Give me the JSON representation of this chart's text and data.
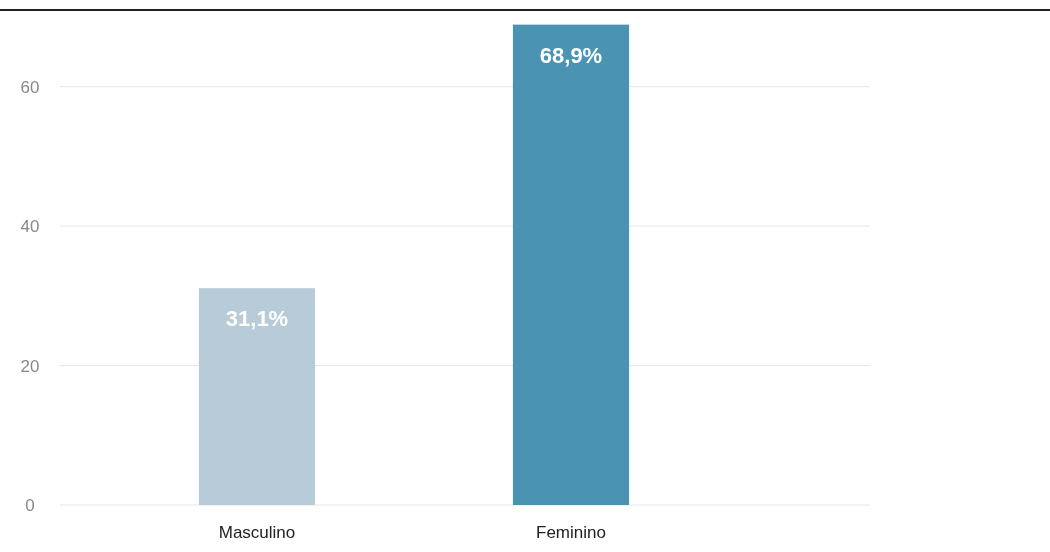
{
  "chart_data": {
    "type": "bar",
    "categories": [
      "Masculino",
      "Feminino"
    ],
    "values": [
      31.1,
      68.9
    ],
    "colors": [
      "#b8cbd8",
      "#4a93b3"
    ],
    "value_labels": [
      "31,1%",
      "68,9%"
    ],
    "ylim": [
      0,
      71
    ],
    "yticks": [
      0,
      20,
      40,
      60
    ],
    "grid": "y"
  }
}
